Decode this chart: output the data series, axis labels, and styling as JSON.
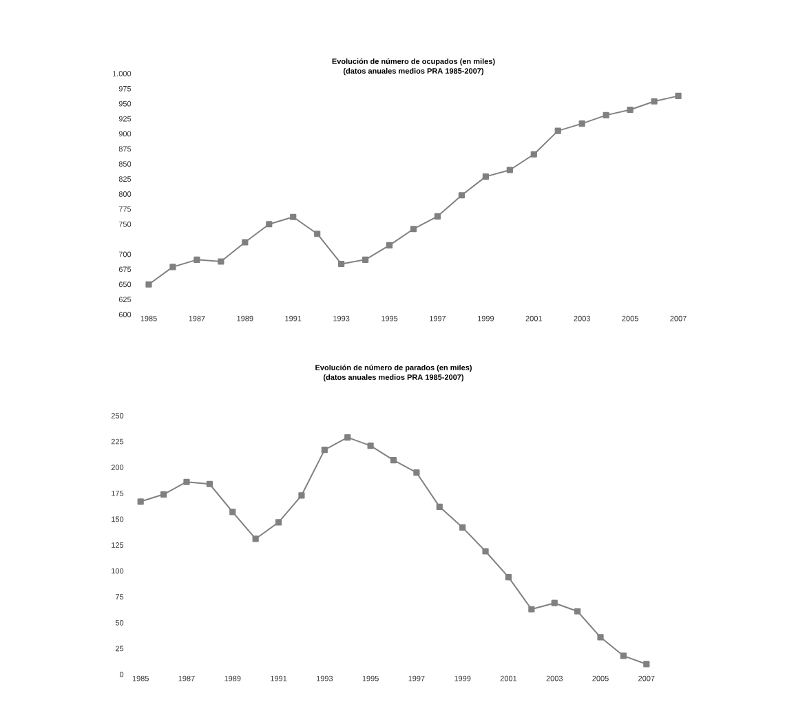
{
  "chart_data": [
    {
      "type": "line",
      "title": "Evolución de número de ocupados (en miles)",
      "subtitle": "(datos anuales medios PRA 1985-2007)",
      "categories": [
        "1985",
        null,
        "1987",
        null,
        "1989",
        null,
        "1991",
        null,
        "1993",
        null,
        "1995",
        null,
        "1997",
        null,
        "1999",
        null,
        "2001",
        null,
        "2003",
        null,
        "2005",
        null,
        "2007"
      ],
      "values": [
        650,
        679,
        691,
        688,
        720,
        750,
        762,
        734,
        684,
        691,
        715,
        742,
        763,
        798,
        829,
        840,
        866,
        905,
        917,
        931,
        940,
        954,
        963
      ],
      "color": "#808080",
      "marker": "square",
      "line_style": "solid",
      "ylim": [
        600,
        1000
      ],
      "yticks": [
        600,
        625,
        650,
        675,
        700,
        750,
        775,
        800,
        825,
        850,
        875,
        900,
        925,
        950,
        975,
        {
          "value": 1000,
          "label": "1.000"
        }
      ]
    },
    {
      "type": "line",
      "title": "Evolución de número de parados (en miles)",
      "subtitle": "(datos anuales medios PRA 1985-2007)",
      "categories": [
        "1985",
        null,
        "1987",
        null,
        "1989",
        null,
        "1991",
        null,
        "1993",
        null,
        "1995",
        null,
        "1997",
        null,
        "1999",
        null,
        "2001",
        null,
        "2003",
        null,
        "2005",
        null,
        "2007"
      ],
      "values": [
        167,
        174,
        186,
        184,
        157,
        131,
        147,
        173,
        217,
        229,
        221,
        207,
        195,
        162,
        142,
        119,
        94,
        63,
        69,
        61,
        36,
        18,
        10
      ],
      "color": "#808080",
      "marker": "square",
      "line_style": "solid",
      "ylim": [
        0,
        250
      ],
      "yticks": [
        0,
        25,
        50,
        75,
        100,
        125,
        150,
        175,
        200,
        225,
        250
      ]
    }
  ]
}
